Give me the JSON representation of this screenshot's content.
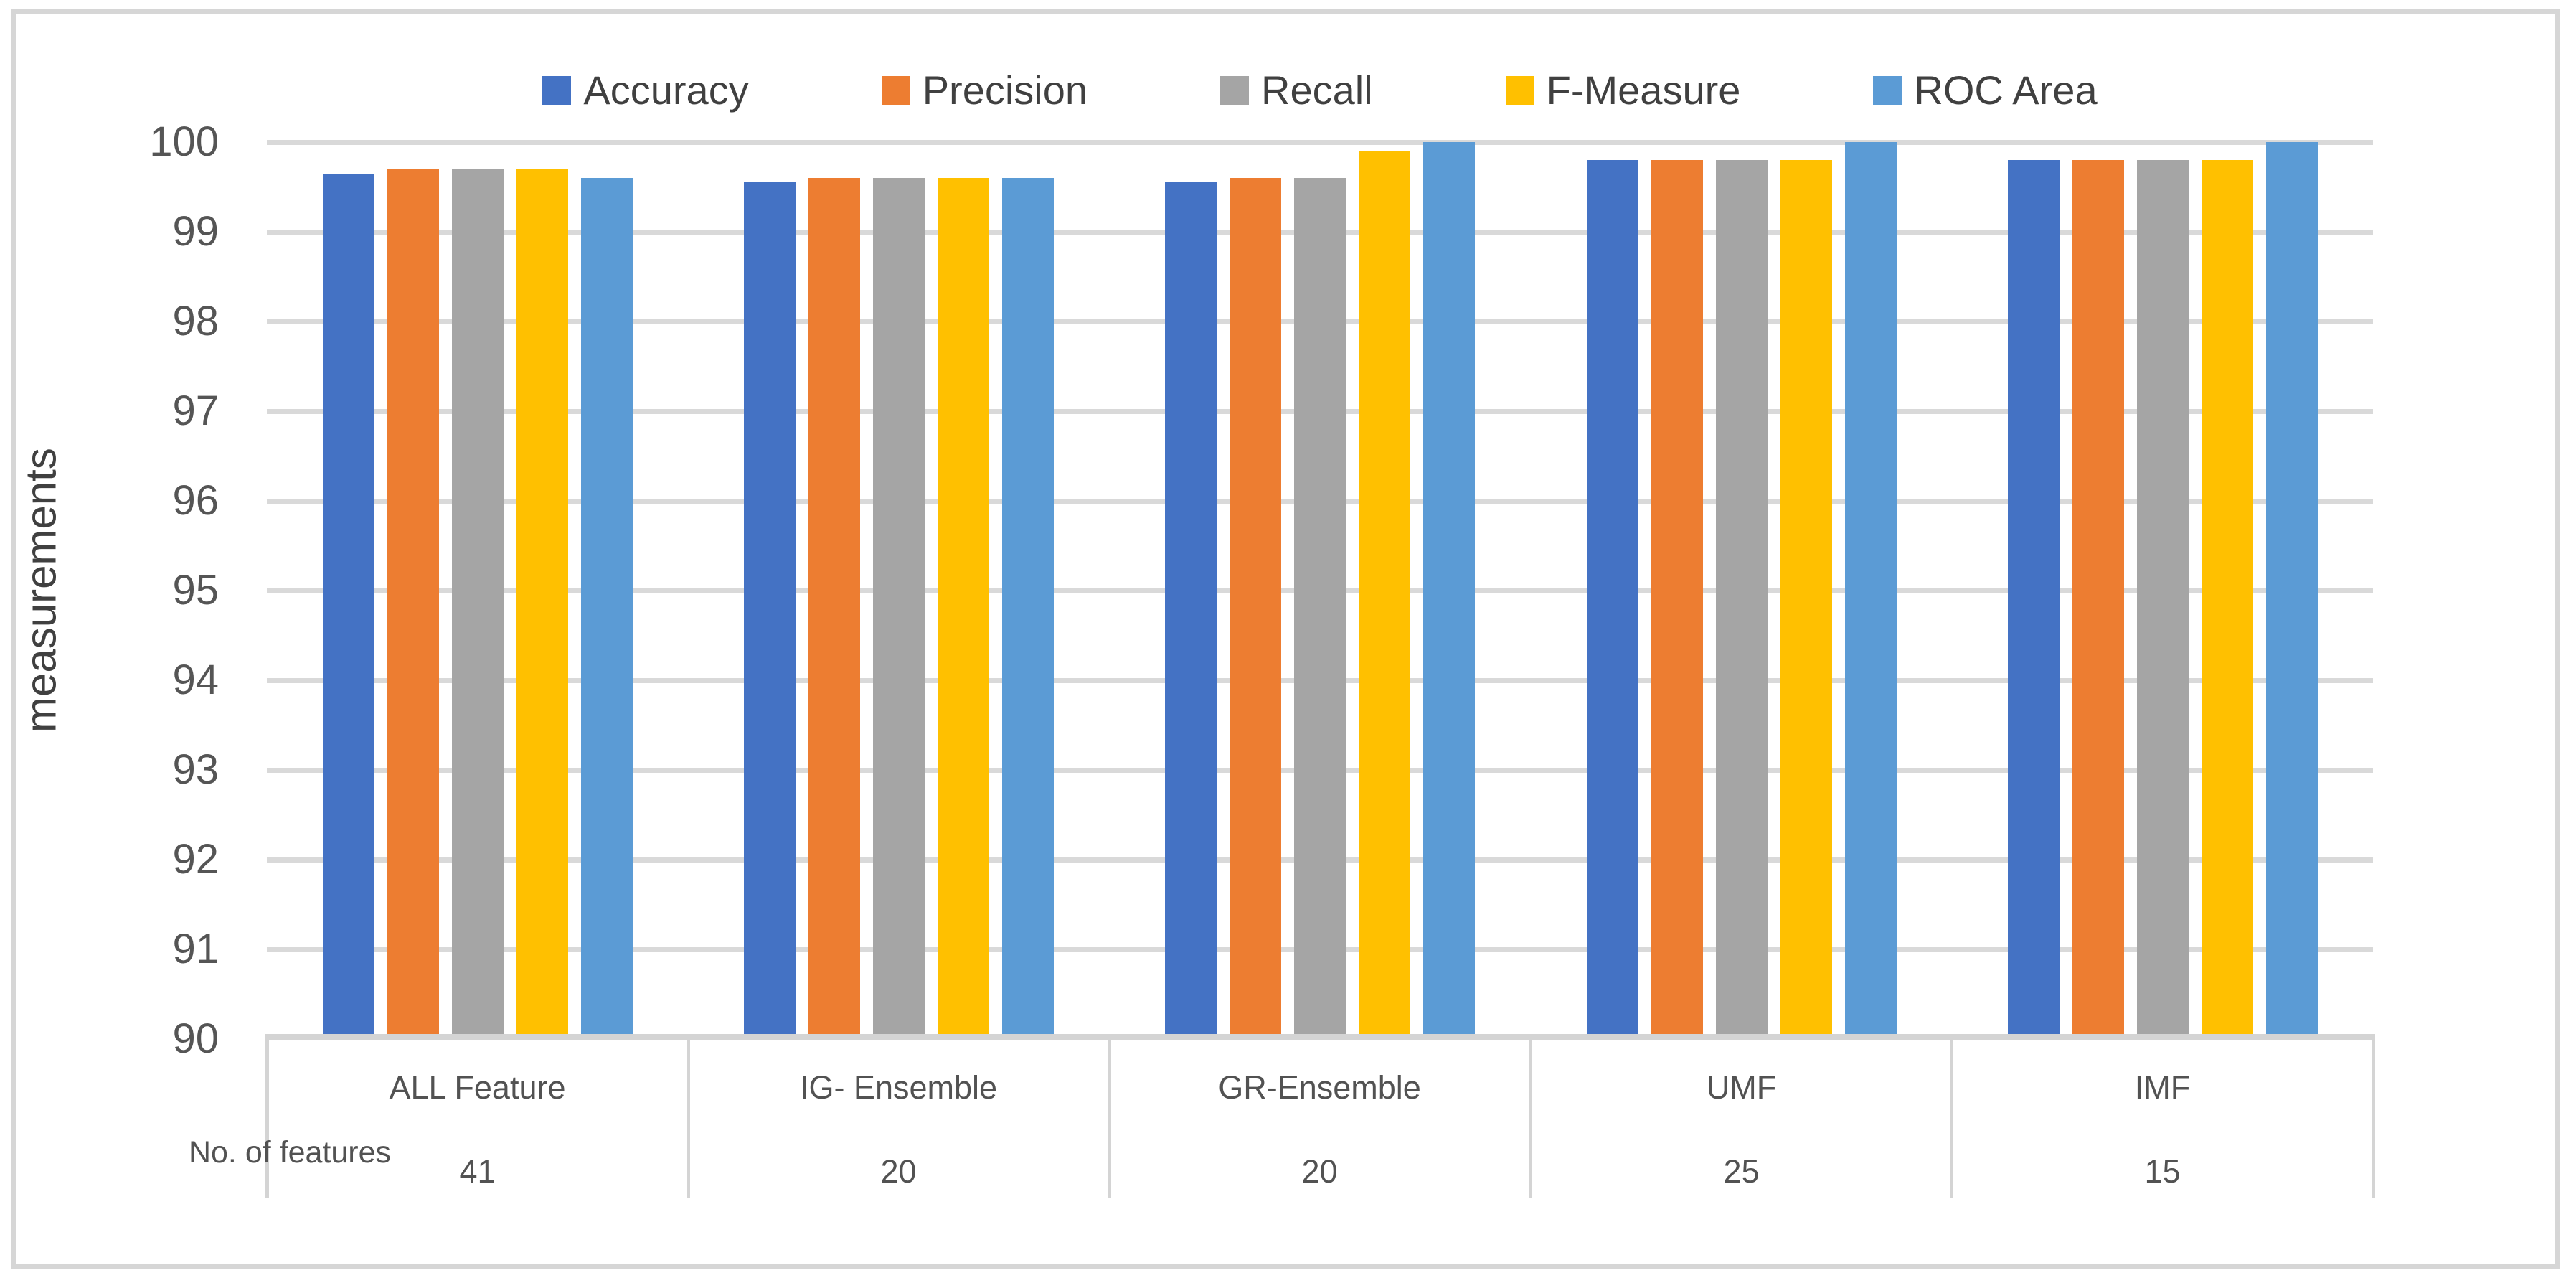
{
  "chart_data": {
    "type": "bar",
    "title": "",
    "categories": [
      "ALL Feature",
      "IG- Ensemble",
      "GR-Ensemble",
      "UMF",
      "IMF"
    ],
    "row_label": "No. of features",
    "feature_counts": [
      "41",
      "20",
      "20",
      "25",
      "15"
    ],
    "series": [
      {
        "name": "Accuracy",
        "color": "#4472C4",
        "values": [
          99.65,
          99.55,
          99.55,
          99.8,
          99.8
        ]
      },
      {
        "name": "Precision",
        "color": "#ED7D31",
        "values": [
          99.7,
          99.6,
          99.6,
          99.8,
          99.8
        ]
      },
      {
        "name": "Recall",
        "color": "#A5A5A5",
        "values": [
          99.7,
          99.6,
          99.6,
          99.8,
          99.8
        ]
      },
      {
        "name": "F-Measure",
        "color": "#FFC000",
        "values": [
          99.7,
          99.6,
          99.9,
          99.8,
          99.8
        ]
      },
      {
        "name": "ROC Area",
        "color": "#5B9BD5",
        "values": [
          99.6,
          99.6,
          100,
          100,
          100
        ]
      }
    ],
    "xlabel": "",
    "ylabel": "measurements",
    "ylim": [
      90,
      100
    ],
    "ytick_step": 1,
    "yticks": [
      "90",
      "91",
      "92",
      "93",
      "94",
      "95",
      "96",
      "97",
      "98",
      "99",
      "100"
    ],
    "grid": true,
    "legend_position": "top"
  },
  "palette": {
    "gridline": "#d9d9d9",
    "axis_line": "#d4d4d4",
    "table_line": "#d4d4d4",
    "tick_text": "#555555",
    "label_text": "#525252",
    "legend_text": "#404040",
    "canvas_border": "#d6d6d6",
    "background": "#ffffff"
  }
}
